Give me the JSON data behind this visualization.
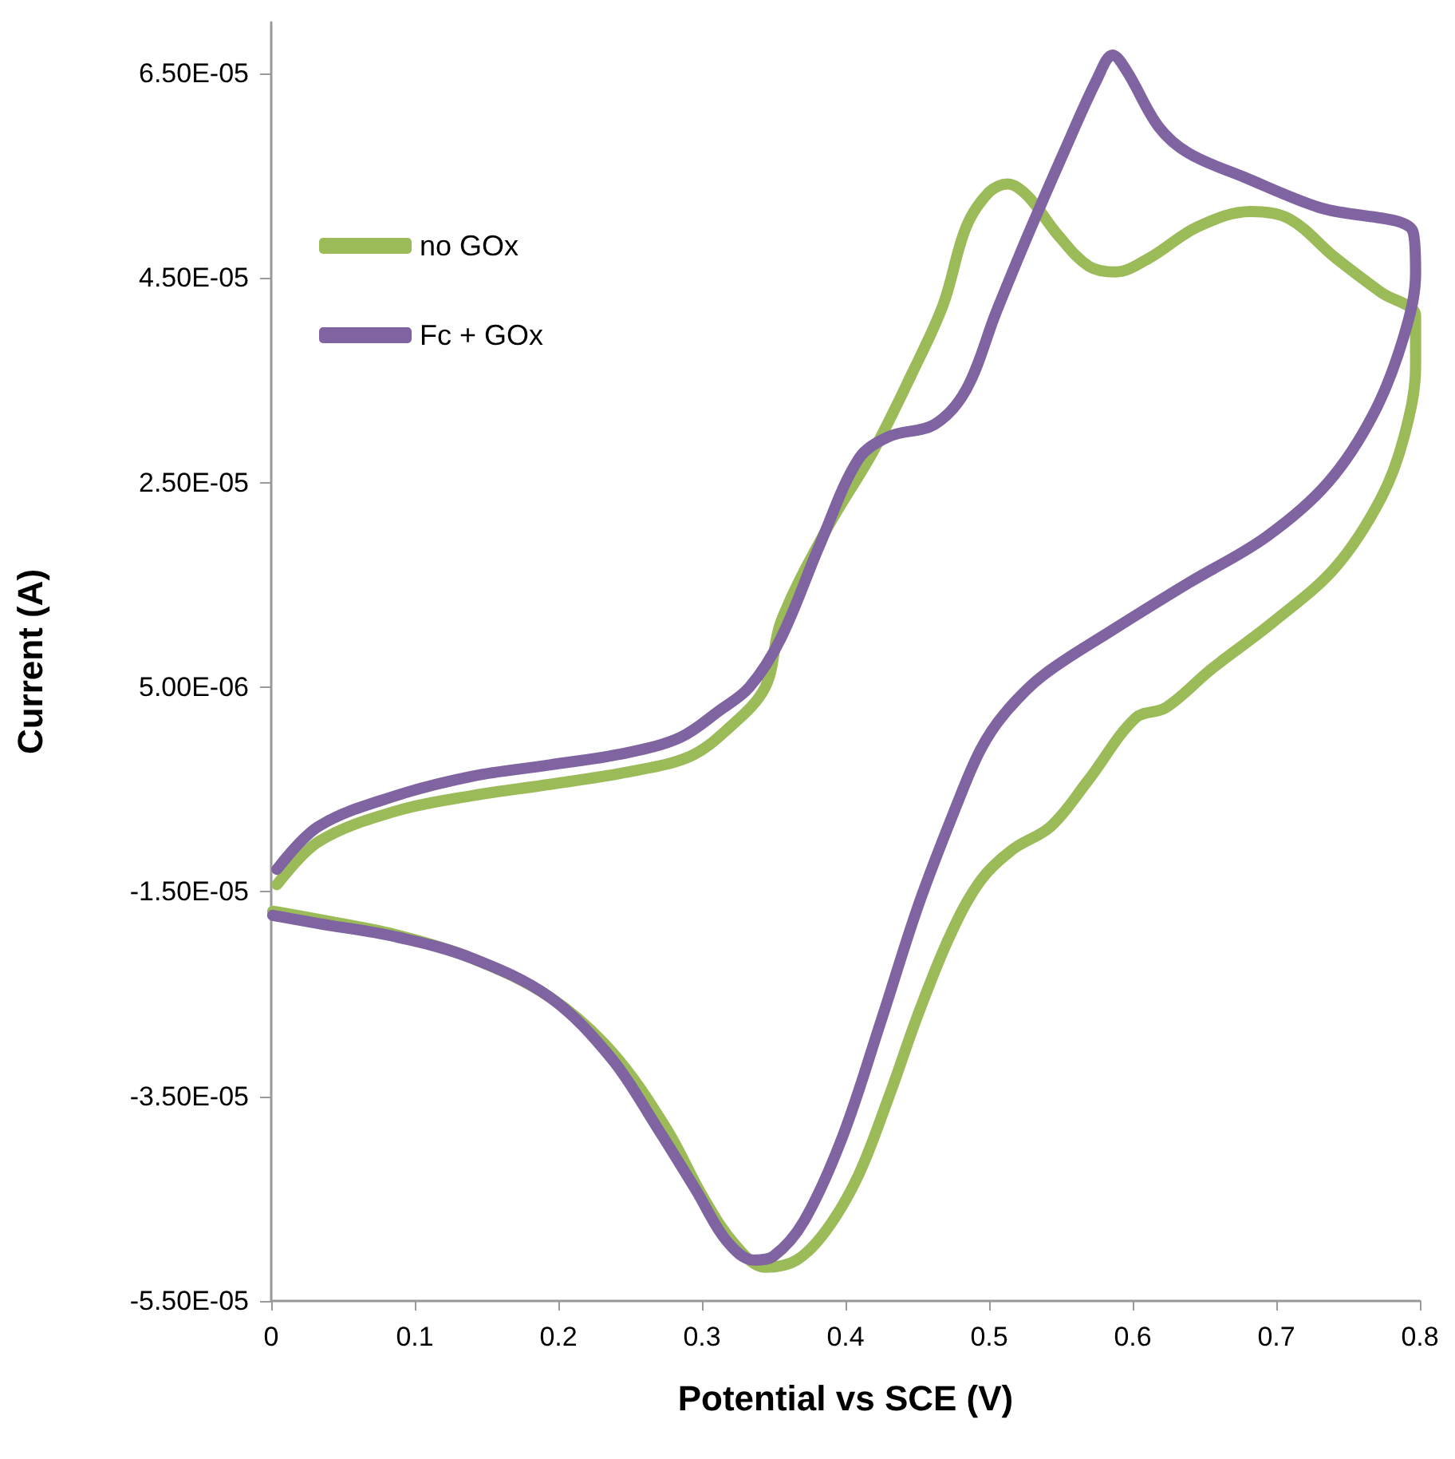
{
  "chart_data": {
    "type": "line",
    "xlabel": "Potential vs SCE (V)",
    "ylabel": "Current (A)",
    "legend": "top left",
    "marker": "none",
    "line_style": "solid",
    "grid": false,
    "xlim": [
      0,
      0.8
    ],
    "xticks": [
      0,
      0.1,
      0.2,
      0.3,
      0.4,
      0.5,
      0.6,
      0.7,
      0.8
    ],
    "ylim": [
      -5.5e-05,
      7e-05
    ],
    "yticks": [
      {
        "value": -5.5e-05,
        "label": "-5.50E-05"
      },
      {
        "value": -3.5e-05,
        "label": "-3.50E-05"
      },
      {
        "value": -1.5e-05,
        "label": "-1.50E-05"
      },
      {
        "value": 5e-06,
        "label": "5.00E-06"
      },
      {
        "value": 2.5e-05,
        "label": "2.50E-05"
      },
      {
        "value": 4.5e-05,
        "label": "4.50E-05"
      },
      {
        "value": 6.5e-05,
        "label": "6.50E-05"
      }
    ],
    "series": [
      {
        "name": "no GOx",
        "color": "#9bbb59",
        "x": [
          0.004,
          0.033,
          0.087,
          0.14,
          0.194,
          0.248,
          0.291,
          0.317,
          0.344,
          0.355,
          0.387,
          0.419,
          0.446,
          0.468,
          0.484,
          0.5,
          0.513,
          0.527,
          0.548,
          0.569,
          0.588,
          0.612,
          0.645,
          0.682,
          0.709,
          0.741,
          0.773,
          0.797,
          0.797,
          0.789,
          0.773,
          0.741,
          0.698,
          0.655,
          0.623,
          0.602,
          0.569,
          0.543,
          0.516,
          0.494,
          0.473,
          0.451,
          0.43,
          0.409,
          0.387,
          0.366,
          0.344,
          0.323,
          0.301,
          0.275,
          0.237,
          0.194,
          0.14,
          0.087,
          0.033,
          0.001
        ],
        "values": [
          -1.43e-05,
          -1.01e-05,
          -7.1e-06,
          -5.6e-06,
          -4.5e-06,
          -3.3e-06,
          -1.8e-06,
          8e-07,
          5e-06,
          1.14e-05,
          2.05e-05,
          2.8e-05,
          3.56e-05,
          4.24e-05,
          5e-05,
          5.34e-05,
          5.42e-05,
          5.3e-05,
          4.92e-05,
          4.62e-05,
          4.56e-05,
          4.7e-05,
          5e-05,
          5.15e-05,
          5.08e-05,
          4.7e-05,
          4.36e-05,
          4.13e-05,
          3.64e-05,
          2.95e-05,
          2.35e-05,
          1.67e-05,
          1.14e-05,
          6.8e-06,
          3e-06,
          2e-06,
          -4.1e-06,
          -8.6e-06,
          -1.09e-05,
          -1.39e-05,
          -1.92e-05,
          -2.68e-05,
          -3.51e-05,
          -4.27e-05,
          -4.8e-05,
          -5.1e-05,
          -5.17e-05,
          -4.95e-05,
          -4.49e-05,
          -3.81e-05,
          -3.06e-05,
          -2.53e-05,
          -2.15e-05,
          -1.92e-05,
          -1.77e-05,
          -1.69e-05
        ]
      },
      {
        "name": "Fc + GOx",
        "color": "#8064a2",
        "x": [
          0.004,
          0.033,
          0.087,
          0.14,
          0.194,
          0.248,
          0.285,
          0.312,
          0.333,
          0.355,
          0.382,
          0.409,
          0.43,
          0.462,
          0.484,
          0.505,
          0.527,
          0.553,
          0.575,
          0.586,
          0.596,
          0.618,
          0.639,
          0.677,
          0.73,
          0.795,
          0.797,
          0.789,
          0.768,
          0.736,
          0.693,
          0.639,
          0.586,
          0.537,
          0.51,
          0.494,
          0.478,
          0.451,
          0.425,
          0.398,
          0.371,
          0.35,
          0.336,
          0.317,
          0.296,
          0.269,
          0.237,
          0.194,
          0.14,
          0.087,
          0.033,
          0.001
        ],
        "values": [
          -1.28e-05,
          -8.6e-06,
          -5.6e-06,
          -3.7e-06,
          -2.6e-06,
          -1.4e-06,
          1e-07,
          2.7e-06,
          5e-06,
          9.8e-06,
          1.89e-05,
          2.73e-05,
          2.95e-05,
          3.07e-05,
          3.41e-05,
          4.17e-05,
          4.92e-05,
          5.76e-05,
          6.44e-05,
          6.68e-05,
          6.52e-05,
          5.98e-05,
          5.72e-05,
          5.49e-05,
          5.19e-05,
          4.96e-05,
          4.55e-05,
          3.94e-05,
          3.18e-05,
          2.5e-05,
          1.97e-05,
          1.52e-05,
          1.06e-05,
          6.1e-06,
          2.3e-06,
          -1.1e-06,
          -6.3e-06,
          -1.62e-05,
          -2.75e-05,
          -3.89e-05,
          -4.72e-05,
          -5.06e-05,
          -5.1e-05,
          -4.91e-05,
          -4.42e-05,
          -3.81e-05,
          -3.13e-05,
          -2.53e-05,
          -2.15e-05,
          -1.94e-05,
          -1.81e-05,
          -1.73e-05
        ]
      }
    ]
  }
}
